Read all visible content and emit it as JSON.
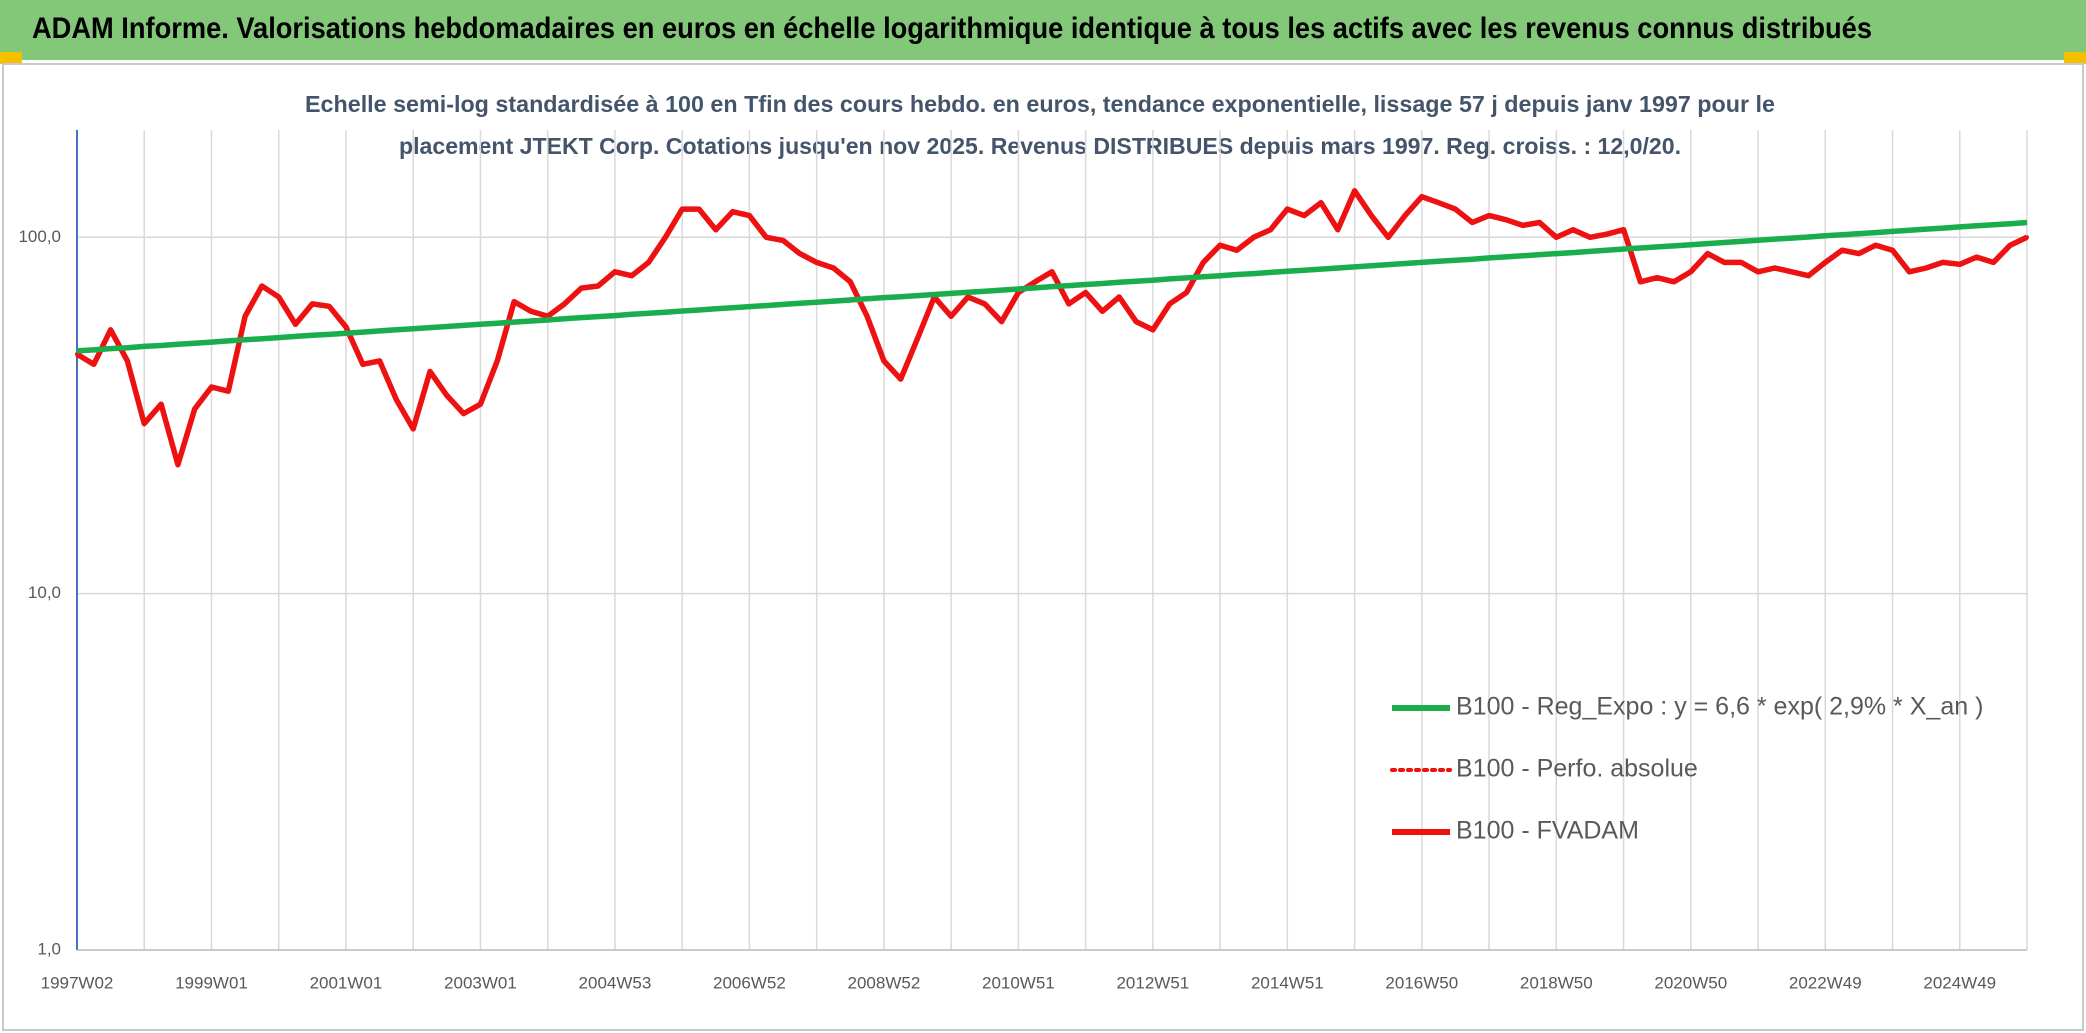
{
  "chart_data": {
    "type": "line",
    "title": "ADAM Informe. Valorisations hebdomadaires en euros en échelle logarithmique identique à tous les actifs avec les revenus connus distribués",
    "subtitle": [
      "Echelle semi-log standardisée à 100 en Tfin des cours hebdo. en euros, tendance exponentielle, lissage 57 j depuis janv 1997 pour le",
      "placement JTEKT Corp. Cotations jusqu'en nov 2025. Revenus DISTRIBUES depuis mars 1997. Reg. croiss. : 12,0/20."
    ],
    "log_scale": true,
    "grid": true,
    "legend": "lower right",
    "ylim": [
      1,
      200
    ],
    "yticks": [
      {
        "value": 1,
        "label": "1,0"
      },
      {
        "value": 10,
        "label": "10,0"
      },
      {
        "value": 100,
        "label": "100,0"
      }
    ],
    "categories": [
      "1997W02",
      null,
      null,
      null,
      null,
      null,
      null,
      null,
      "1999W01",
      null,
      null,
      null,
      null,
      null,
      null,
      null,
      "2001W01",
      null,
      null,
      null,
      null,
      null,
      null,
      null,
      "2003W01",
      null,
      null,
      null,
      null,
      null,
      null,
      null,
      "2004W53",
      null,
      null,
      null,
      null,
      null,
      null,
      null,
      "2006W52",
      null,
      null,
      null,
      null,
      null,
      null,
      null,
      "2008W52",
      null,
      null,
      null,
      null,
      null,
      null,
      null,
      "2010W51",
      null,
      null,
      null,
      null,
      null,
      null,
      null,
      "2012W51",
      null,
      null,
      null,
      null,
      null,
      null,
      null,
      "2014W51",
      null,
      null,
      null,
      null,
      null,
      null,
      null,
      "2016W50",
      null,
      null,
      null,
      null,
      null,
      null,
      null,
      "2018W50",
      null,
      null,
      null,
      null,
      null,
      null,
      null,
      "2020W50",
      null,
      null,
      null,
      null,
      null,
      null,
      null,
      "2022W49",
      null,
      null,
      null,
      null,
      null,
      null,
      null,
      "2024W49",
      null,
      null,
      null,
      null
    ],
    "series": [
      {
        "name": "B100 - Reg_Expo : y = 6,6 * exp( 2,9% *  X_an )",
        "color": "#1aad4b",
        "style": "solid",
        "values": [
          48.0,
          48.3,
          48.7,
          49.0,
          49.4,
          49.7,
          50.1,
          50.4,
          50.8,
          51.2,
          51.6,
          51.9,
          52.3,
          52.7,
          53.1,
          53.4,
          53.8,
          54.2,
          54.6,
          55.0,
          55.4,
          55.8,
          56.2,
          56.6,
          57.0,
          57.4,
          57.8,
          58.2,
          58.6,
          59.1,
          59.5,
          59.9,
          60.3,
          60.8,
          61.2,
          61.6,
          62.1,
          62.5,
          63.0,
          63.4,
          63.9,
          64.3,
          64.8,
          65.3,
          65.7,
          66.2,
          66.7,
          67.2,
          67.7,
          68.1,
          68.6,
          69.1,
          69.6,
          70.1,
          70.6,
          71.1,
          71.6,
          72.1,
          72.7,
          73.2,
          73.7,
          74.2,
          74.8,
          75.3,
          75.8,
          76.4,
          76.9,
          77.5,
          78.0,
          78.6,
          79.1,
          79.7,
          80.3,
          80.8,
          81.4,
          82.0,
          82.6,
          83.2,
          83.8,
          84.4,
          85.0,
          85.6,
          86.2,
          86.8,
          87.5,
          88.1,
          88.7,
          89.4,
          90.0,
          90.6,
          91.3,
          91.9,
          92.7,
          93.3,
          94.0,
          94.6,
          95.3,
          96.0,
          96.7,
          97.4,
          98.1,
          98.8,
          99.5,
          100.2,
          101.0,
          101.7,
          102.4,
          103.1,
          103.9,
          104.6,
          105.4,
          106.1,
          106.9,
          107.7,
          108.4,
          109.2,
          110.0
        ]
      },
      {
        "name": "B100 - Perfo. absolue",
        "color": "#ee1111",
        "style": "dotted",
        "values": [
          47,
          44,
          55,
          45,
          30,
          34,
          23,
          33,
          38,
          37,
          60,
          73,
          68,
          57,
          65,
          64,
          56,
          44,
          45,
          35,
          29,
          42,
          36,
          32,
          34,
          45,
          66,
          62,
          60,
          65,
          72,
          73,
          80,
          78,
          85,
          100,
          120,
          120,
          105,
          118,
          115,
          100,
          98,
          90,
          85,
          82,
          75,
          60,
          45,
          40,
          52,
          68,
          60,
          68,
          65,
          58,
          70,
          75,
          80,
          65,
          70,
          62,
          68,
          58,
          55,
          65,
          70,
          85,
          95,
          92,
          100,
          105,
          120,
          115,
          125,
          105,
          135,
          115,
          100,
          115,
          130,
          125,
          120,
          110,
          115,
          112,
          108,
          110,
          100,
          105,
          100,
          102,
          105,
          75,
          77,
          75,
          80,
          90,
          85,
          85,
          80,
          82,
          80,
          78,
          85,
          92,
          90,
          95,
          92,
          80,
          82,
          85,
          84,
          88,
          85,
          95,
          100
        ]
      },
      {
        "name": "B100 - FVADAM",
        "color": "#ee1111",
        "style": "solid",
        "values": [
          47,
          44,
          55,
          45,
          30,
          34,
          23,
          33,
          38,
          37,
          60,
          73,
          68,
          57,
          65,
          64,
          56,
          44,
          45,
          35,
          29,
          42,
          36,
          32,
          34,
          45,
          66,
          62,
          60,
          65,
          72,
          73,
          80,
          78,
          85,
          100,
          120,
          120,
          105,
          118,
          115,
          100,
          98,
          90,
          85,
          82,
          75,
          60,
          45,
          40,
          52,
          68,
          60,
          68,
          65,
          58,
          70,
          75,
          80,
          65,
          70,
          62,
          68,
          58,
          55,
          65,
          70,
          85,
          95,
          92,
          100,
          105,
          120,
          115,
          125,
          105,
          135,
          115,
          100,
          115,
          130,
          125,
          120,
          110,
          115,
          112,
          108,
          110,
          100,
          105,
          100,
          102,
          105,
          75,
          77,
          75,
          80,
          90,
          85,
          85,
          80,
          82,
          80,
          78,
          85,
          92,
          90,
          95,
          92,
          80,
          82,
          85,
          84,
          88,
          85,
          95,
          100
        ]
      }
    ]
  }
}
